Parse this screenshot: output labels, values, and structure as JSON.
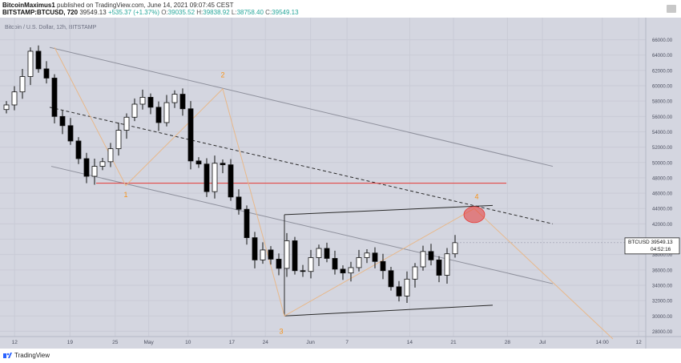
{
  "header": {
    "author": "BitcoinMaximus1",
    "published": "published on TradingView.com, June 14, 2021 09:07:45 CEST",
    "symbol": "BITSTAMP:BTCUSD, 720",
    "price": "39549.13",
    "change": "+535.37 (+1.37%)",
    "o_label": "O:",
    "o": "39035.52",
    "h_label": "H:",
    "h": "39838.92",
    "l_label": "L:",
    "l": "38758.40",
    "c_label": "C:",
    "c": "39549.13"
  },
  "footer": {
    "brand": "TradingView"
  },
  "colors": {
    "bull": "#ffffff",
    "bear": "#000000",
    "orange": "#f7931a",
    "red": "#e53935",
    "bg": "#d4d6e0"
  },
  "chart_data": {
    "type": "candlestick",
    "title": "Bitcoin / U.S. Dollar, 12h, BITSTAMP",
    "ylim": [
      27000,
      67000
    ],
    "y_ticks": [
      "28000.00",
      "30000.00",
      "32000.00",
      "34000.00",
      "36000.00",
      "38000.00",
      "40000.00",
      "42000.00",
      "44000.00",
      "46000.00",
      "48000.00",
      "50000.00",
      "52000.00",
      "54000.00",
      "56000.00",
      "58000.00",
      "60000.00",
      "62000.00",
      "64000.00",
      "66000.00"
    ],
    "x_ticks": [
      "12",
      "19",
      "25",
      "May",
      "10",
      "17",
      "24",
      "Jun",
      "7",
      "14",
      "21",
      "28",
      "Jul",
      "14:00",
      "12"
    ],
    "price_label": {
      "name": "BTCUSD",
      "value": "39549.13",
      "countdown": "04:52:16"
    },
    "close_series": [
      57500,
      59200,
      61200,
      64500,
      62200,
      61000,
      56000,
      54800,
      52800,
      50500,
      48200,
      49500,
      50100,
      51800,
      54200,
      55900,
      57600,
      58500,
      57200,
      55200,
      57800,
      58900,
      57000,
      50200,
      49800,
      46200,
      49900,
      49700,
      45500,
      43900,
      40200,
      37300,
      38600,
      37400,
      36200,
      39800,
      35900,
      35800,
      37600,
      38800,
      37500,
      36100,
      35600,
      36300,
      37600,
      38200,
      37100,
      35900,
      33800,
      32600,
      34800,
      36400,
      38400,
      37300,
      35300,
      38100,
      39549
    ],
    "wave_labels": [
      {
        "label": "1",
        "x": "Apr 25",
        "y": 47000
      },
      {
        "label": "2",
        "x": "May 10",
        "y": 59600
      },
      {
        "label": "3",
        "x": "May 19",
        "y": 30000
      },
      {
        "label": "4",
        "x": "Jun 19",
        "y": 44000
      }
    ],
    "annotations": [
      {
        "type": "horizontal-line",
        "color": "red",
        "y": 47300
      },
      {
        "type": "ellipse",
        "color": "red",
        "x": "Jun 19",
        "y": 43200
      }
    ]
  }
}
